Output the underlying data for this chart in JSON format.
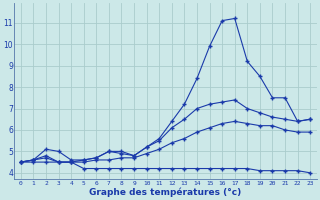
{
  "xlabel": "Graphe des températures (°c)",
  "bg_color": "#cce8e8",
  "line_color": "#1a3aaa",
  "grid_color": "#aacccc",
  "hours": [
    0,
    1,
    2,
    3,
    4,
    5,
    6,
    7,
    8,
    9,
    10,
    11,
    12,
    13,
    14,
    15,
    16,
    17,
    18,
    19,
    20,
    21,
    22,
    23
  ],
  "line1": [
    4.5,
    4.6,
    4.7,
    4.5,
    4.5,
    4.6,
    4.7,
    5.0,
    5.0,
    4.8,
    5.2,
    5.6,
    6.4,
    7.2,
    8.4,
    9.9,
    11.1,
    11.2,
    9.2,
    8.5,
    7.5,
    7.5,
    6.4,
    6.5
  ],
  "line2": [
    4.5,
    4.6,
    5.1,
    5.0,
    4.6,
    4.6,
    4.7,
    5.0,
    4.9,
    4.8,
    5.2,
    5.5,
    6.1,
    6.5,
    7.0,
    7.2,
    7.3,
    7.4,
    7.0,
    6.8,
    6.6,
    6.5,
    6.4,
    6.5
  ],
  "line3": [
    4.5,
    4.6,
    4.8,
    4.5,
    4.5,
    4.5,
    4.6,
    4.6,
    4.7,
    4.7,
    4.9,
    5.1,
    5.4,
    5.6,
    5.9,
    6.1,
    6.3,
    6.4,
    6.3,
    6.2,
    6.2,
    6.0,
    5.9,
    5.9
  ],
  "line4": [
    4.5,
    4.5,
    4.5,
    4.5,
    4.5,
    4.2,
    4.2,
    4.2,
    4.2,
    4.2,
    4.2,
    4.2,
    4.2,
    4.2,
    4.2,
    4.2,
    4.2,
    4.2,
    4.2,
    4.1,
    4.1,
    4.1,
    4.1,
    4.0
  ],
  "ylim": [
    3.7,
    11.9
  ],
  "yticks": [
    4,
    5,
    6,
    7,
    8,
    9,
    10,
    11
  ],
  "xlim": [
    -0.5,
    23.5
  ]
}
